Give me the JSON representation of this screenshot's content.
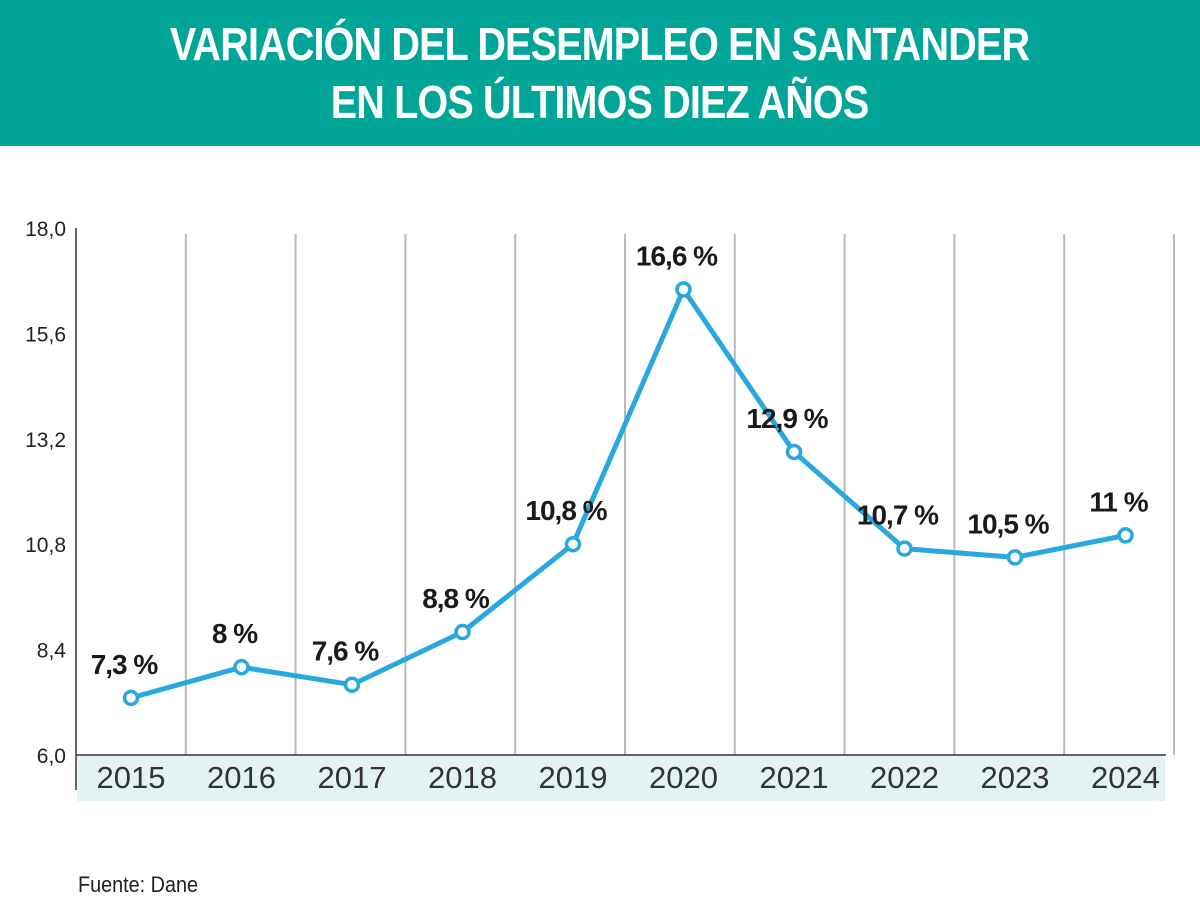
{
  "header": {
    "title_line1": "VARIACIÓN DEL DESEMPLEO EN SANTANDER",
    "title_line2": "EN LOS ÚLTIMOS DIEZ AÑOS"
  },
  "footer": {
    "source": "Fuente: Dane"
  },
  "colors": {
    "banner": "#00a598",
    "line": "#29a8df",
    "grid": "#b9b9c0",
    "xband": "#e3f3f4"
  },
  "chart_data": {
    "type": "line",
    "title": "VARIACIÓN DEL DESEMPLEO EN SANTANDER EN LOS ÚLTIMOS DIEZ AÑOS",
    "x": [
      "2015",
      "2016",
      "2017",
      "2018",
      "2019",
      "2020",
      "2021",
      "2022",
      "2023",
      "2024"
    ],
    "series": [
      {
        "values": [
          7.3,
          8,
          7.6,
          8.8,
          10.8,
          16.6,
          12.9,
          10.7,
          10.5,
          11
        ]
      }
    ],
    "data_labels": [
      "7,3 %",
      "8 %",
      "7,6 %",
      "8,8 %",
      "10,8 %",
      "16,6 %",
      "12,9 %",
      "10,7 %",
      "10,5 %",
      "11 %"
    ],
    "yticks": [
      "6,0",
      "8,4",
      "10,8",
      "13,2",
      "15,6",
      "18,0"
    ],
    "ylim": [
      6.0,
      18.0
    ],
    "grid": "vertical",
    "legend": "none"
  }
}
